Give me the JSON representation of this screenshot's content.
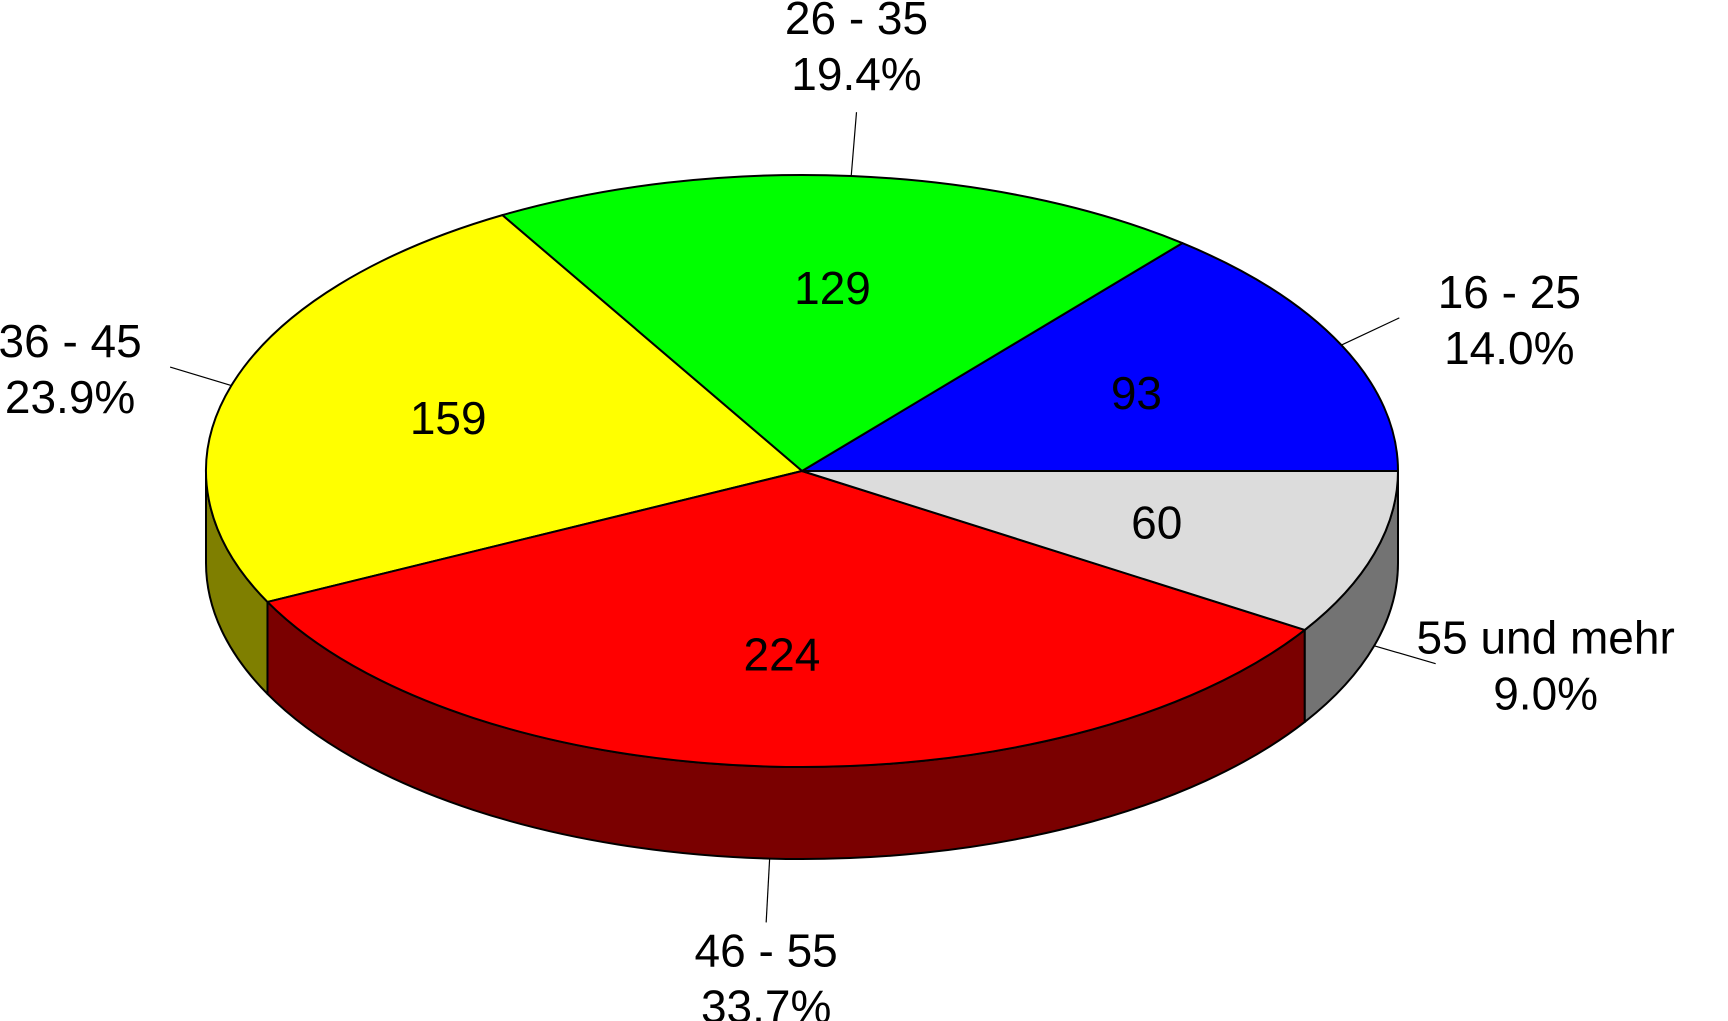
{
  "chart_data": {
    "type": "pie",
    "style": "3d",
    "categories": [
      "16 - 25",
      "26 - 35",
      "36 - 45",
      "46 - 55",
      "55 und mehr"
    ],
    "values": [
      93,
      129,
      159,
      224,
      60
    ],
    "percent_labels": [
      "14.0%",
      "19.4%",
      "23.9%",
      "33.7%",
      "9.0%"
    ],
    "colors": [
      "#0000ff",
      "#00ff00",
      "#ffff00",
      "#ff0000",
      "#dcdcdc"
    ],
    "side_colors": [
      "#00007a",
      "#007a00",
      "#7f7f00",
      "#7a0000",
      "#737373"
    ],
    "title": "",
    "legend": "none"
  }
}
